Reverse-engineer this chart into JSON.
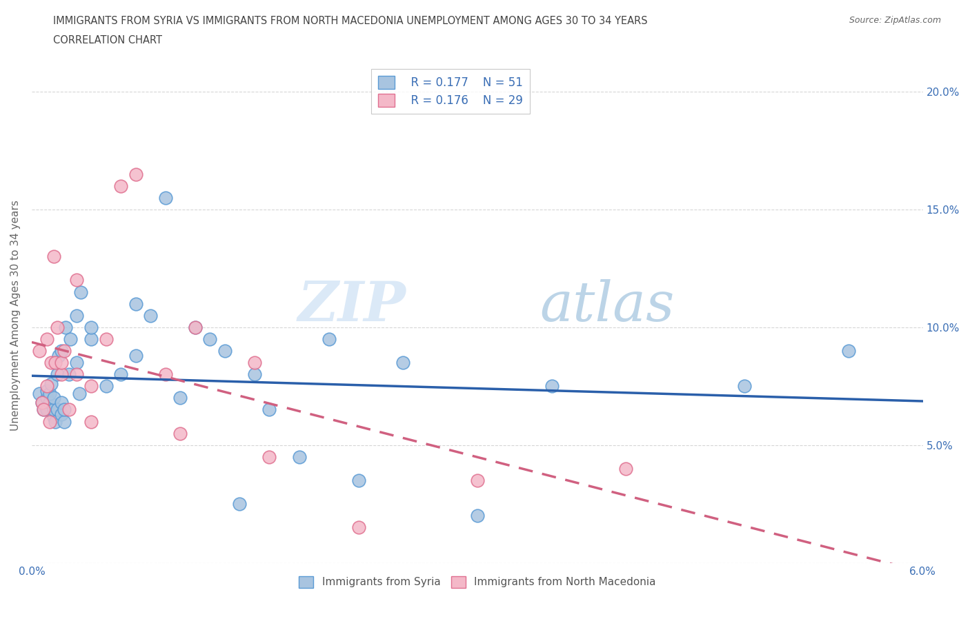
{
  "title_line1": "IMMIGRANTS FROM SYRIA VS IMMIGRANTS FROM NORTH MACEDONIA UNEMPLOYMENT AMONG AGES 30 TO 34 YEARS",
  "title_line2": "CORRELATION CHART",
  "source": "Source: ZipAtlas.com",
  "ylabel": "Unemployment Among Ages 30 to 34 years",
  "xlim": [
    0.0,
    0.06
  ],
  "ylim": [
    0.0,
    0.21
  ],
  "xticks": [
    0.0,
    0.01,
    0.02,
    0.03,
    0.04,
    0.05,
    0.06
  ],
  "xtick_labels": [
    "0.0%",
    "",
    "",
    "",
    "",
    "",
    "6.0%"
  ],
  "yticks": [
    0.0,
    0.05,
    0.1,
    0.15,
    0.2
  ],
  "ytick_labels": [
    "",
    "5.0%",
    "10.0%",
    "15.0%",
    "20.0%"
  ],
  "syria_color": "#a8c4e0",
  "syria_edge_color": "#5b9bd5",
  "macedonia_color": "#f4b8c8",
  "macedonia_edge_color": "#e07090",
  "syria_line_color": "#2a5faa",
  "macedonia_line_color": "#d06080",
  "legend_r_syria": "R = 0.177",
  "legend_n_syria": "N = 51",
  "legend_r_macedonia": "R = 0.176",
  "legend_n_macedonia": "N = 29",
  "watermark": "ZIPatlas",
  "syria_x": [
    0.0005,
    0.0007,
    0.0008,
    0.001,
    0.001,
    0.001,
    0.0012,
    0.0012,
    0.0013,
    0.0015,
    0.0015,
    0.0015,
    0.0016,
    0.0017,
    0.0017,
    0.0018,
    0.002,
    0.002,
    0.002,
    0.0022,
    0.0022,
    0.0023,
    0.0025,
    0.0026,
    0.003,
    0.003,
    0.0032,
    0.0033,
    0.004,
    0.004,
    0.005,
    0.006,
    0.007,
    0.007,
    0.008,
    0.009,
    0.01,
    0.011,
    0.012,
    0.013,
    0.014,
    0.015,
    0.016,
    0.018,
    0.02,
    0.022,
    0.025,
    0.03,
    0.035,
    0.048,
    0.055
  ],
  "syria_y": [
    0.072,
    0.068,
    0.065,
    0.07,
    0.073,
    0.065,
    0.068,
    0.072,
    0.076,
    0.062,
    0.065,
    0.07,
    0.06,
    0.065,
    0.08,
    0.088,
    0.063,
    0.068,
    0.09,
    0.06,
    0.065,
    0.1,
    0.08,
    0.095,
    0.085,
    0.105,
    0.072,
    0.115,
    0.095,
    0.1,
    0.075,
    0.08,
    0.088,
    0.11,
    0.105,
    0.155,
    0.07,
    0.1,
    0.095,
    0.09,
    0.025,
    0.08,
    0.065,
    0.045,
    0.095,
    0.035,
    0.085,
    0.02,
    0.075,
    0.075,
    0.09
  ],
  "macedonia_x": [
    0.0005,
    0.0007,
    0.0008,
    0.001,
    0.001,
    0.0012,
    0.0013,
    0.0015,
    0.0016,
    0.0017,
    0.002,
    0.002,
    0.0022,
    0.0025,
    0.003,
    0.003,
    0.004,
    0.004,
    0.005,
    0.006,
    0.007,
    0.009,
    0.01,
    0.011,
    0.015,
    0.016,
    0.022,
    0.03,
    0.04
  ],
  "macedonia_y": [
    0.09,
    0.068,
    0.065,
    0.075,
    0.095,
    0.06,
    0.085,
    0.13,
    0.085,
    0.1,
    0.08,
    0.085,
    0.09,
    0.065,
    0.12,
    0.08,
    0.06,
    0.075,
    0.095,
    0.16,
    0.165,
    0.08,
    0.055,
    0.1,
    0.085,
    0.045,
    0.015,
    0.035,
    0.04
  ]
}
